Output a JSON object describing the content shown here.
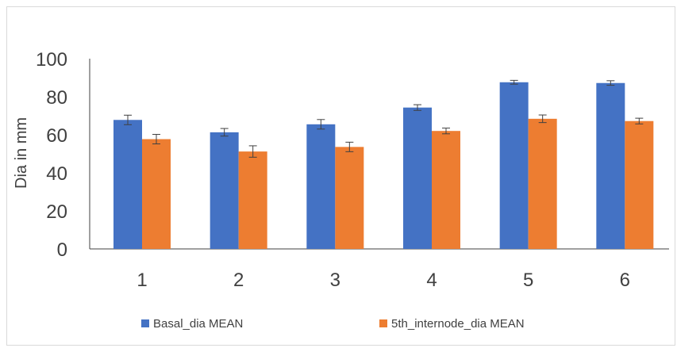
{
  "chart_data": {
    "type": "bar",
    "title": "",
    "xlabel": "",
    "ylabel": "Dia in mm",
    "ylim": [
      0,
      100
    ],
    "yticks": [
      0,
      20,
      40,
      60,
      80,
      100
    ],
    "grid": false,
    "legend_position": "bottom",
    "categories": [
      "1",
      "2",
      "3",
      "4",
      "5",
      "6"
    ],
    "series": [
      {
        "name": "Basal_dia MEAN",
        "color": "#4472C4",
        "values": [
          67.8,
          61.3,
          65.5,
          74.3,
          87.6,
          87.2
        ],
        "error": [
          2.5,
          2.0,
          2.5,
          1.5,
          1.0,
          1.2
        ]
      },
      {
        "name": "5th_internode_dia MEAN",
        "color": "#ED7D31",
        "values": [
          57.7,
          51.2,
          53.6,
          62.0,
          68.4,
          67.2
        ],
        "error": [
          2.5,
          3.0,
          2.5,
          1.5,
          2.0,
          1.5
        ]
      }
    ]
  }
}
